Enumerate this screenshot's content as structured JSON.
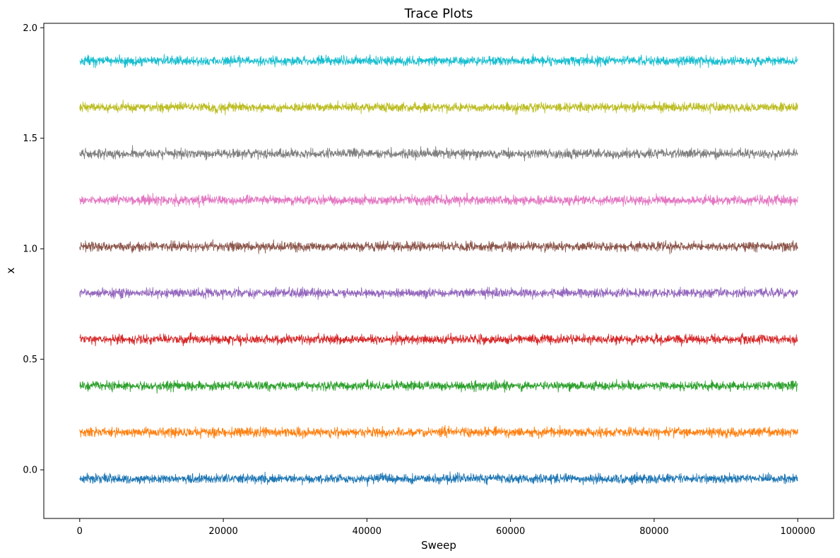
{
  "chart_data": {
    "type": "line",
    "title": "Trace Plots",
    "xlabel": "Sweep",
    "ylabel": "x",
    "xlim": [
      -5000,
      105000
    ],
    "ylim": [
      -0.22,
      2.02
    ],
    "xticks": [
      0,
      20000,
      40000,
      60000,
      80000,
      100000
    ],
    "yticks": [
      0.0,
      0.5,
      1.0,
      1.5,
      2.0
    ],
    "ytick_labels": [
      "0.0",
      "0.5",
      "1.0",
      "1.5",
      "2.0"
    ],
    "grid": false,
    "x_range": [
      0,
      100000
    ],
    "series": [
      {
        "color": "#1f77b4",
        "mean": -0.04,
        "spread": 0.045,
        "min": -0.11,
        "max": 0.04
      },
      {
        "color": "#ff7f0e",
        "mean": 0.17,
        "spread": 0.045,
        "min": 0.09,
        "max": 0.25
      },
      {
        "color": "#2ca02c",
        "mean": 0.38,
        "spread": 0.045,
        "min": 0.31,
        "max": 0.45
      },
      {
        "color": "#d62728",
        "mean": 0.59,
        "spread": 0.045,
        "min": 0.52,
        "max": 0.67
      },
      {
        "color": "#9467bd",
        "mean": 0.8,
        "spread": 0.045,
        "min": 0.72,
        "max": 0.87
      },
      {
        "color": "#8c564b",
        "mean": 1.01,
        "spread": 0.045,
        "min": 0.94,
        "max": 1.08
      },
      {
        "color": "#e377c2",
        "mean": 1.22,
        "spread": 0.045,
        "min": 1.13,
        "max": 1.3
      },
      {
        "color": "#7f7f7f",
        "mean": 1.43,
        "spread": 0.045,
        "min": 1.36,
        "max": 1.52
      },
      {
        "color": "#bcbd22",
        "mean": 1.64,
        "spread": 0.045,
        "min": 1.56,
        "max": 1.71
      },
      {
        "color": "#17becf",
        "mean": 1.85,
        "spread": 0.045,
        "min": 1.78,
        "max": 1.93
      }
    ]
  }
}
